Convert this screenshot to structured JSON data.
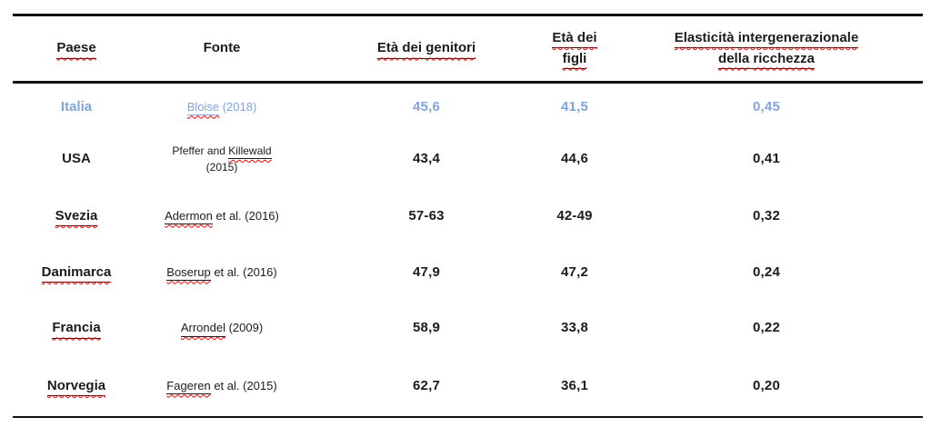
{
  "page": {
    "background": "#ffffff"
  },
  "colors": {
    "highlight_blue": "#7fa5dc",
    "squiggle_red": "#ff0000",
    "text": "#1c1c1c",
    "rule_line": "#111111"
  },
  "table": {
    "headers": {
      "col1": "Paese",
      "col2": "Fonte",
      "col3": {
        "words": [
          "Età",
          "dei",
          "genitori"
        ]
      },
      "col4": {
        "line1_words": [
          "Età",
          "dei"
        ],
        "line2_words": [
          "figli"
        ]
      },
      "col5": {
        "line1_words": [
          "Elasticità",
          "intergenerazionale"
        ],
        "line2_words": [
          "della",
          "ricchezza"
        ]
      }
    },
    "rows": [
      {
        "country": "Italia",
        "source_pre": "",
        "source_word": "Bloise",
        "source_rest": " (2018)",
        "source_line2": "",
        "parents": "45,6",
        "children": "41,5",
        "elasticity": "0,45"
      },
      {
        "country": "USA",
        "source_pre": "Pfeffer and ",
        "source_word": "Killewald",
        "source_rest": "",
        "source_line2": "(2015)",
        "parents": "43,4",
        "children": "44,6",
        "elasticity": "0,41"
      },
      {
        "country": "Svezia",
        "source_pre": "",
        "source_word": "Adermon",
        "source_rest": " et al. (2016)",
        "source_line2": "",
        "parents": "57-63",
        "children": "42-49",
        "elasticity": "0,32"
      },
      {
        "country": "Danimarca",
        "source_pre": "",
        "source_word": "Boserup",
        "source_rest": " et al. (2016)",
        "source_line2": "",
        "parents": "47,9",
        "children": "47,2",
        "elasticity": "0,24"
      },
      {
        "country": "Francia",
        "source_pre": "",
        "source_word": "Arrondel",
        "source_rest": " (2009)",
        "source_line2": "",
        "parents": "58,9",
        "children": "33,8",
        "elasticity": "0,22"
      },
      {
        "country": "Norvegia",
        "source_pre": "",
        "source_word": "Fageren",
        "source_rest": " et al. (2015)",
        "source_line2": "",
        "parents": "62,7",
        "children": "36,1",
        "elasticity": "0,20"
      }
    ]
  }
}
